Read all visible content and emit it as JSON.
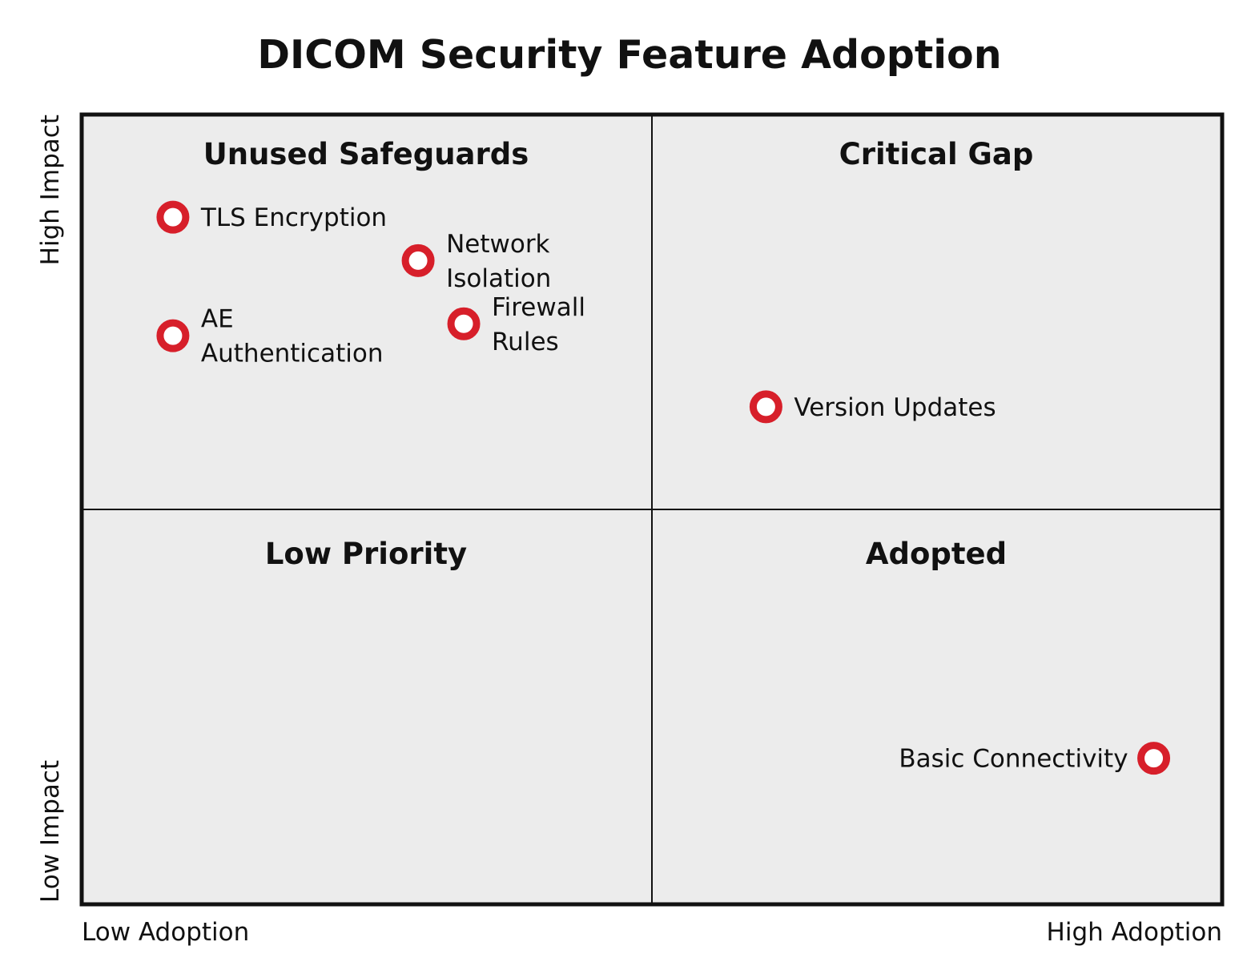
{
  "chart_data": {
    "type": "scatter",
    "title": "DICOM Security Feature Adoption",
    "x_axis": {
      "low_label": "Low Adoption",
      "high_label": "High Adoption",
      "range": [
        0,
        1
      ]
    },
    "y_axis": {
      "low_label": "Low Impact",
      "high_label": "High Impact",
      "range": [
        0,
        1
      ]
    },
    "grid": false,
    "quadrants": {
      "top_left": "Unused Safeguards",
      "top_right": "Critical Gap",
      "bottom_left": "Low Priority",
      "bottom_right": "Adopted"
    },
    "points": [
      {
        "label": [
          "TLS Encryption"
        ],
        "x": 0.08,
        "y": 0.87,
        "label_side": "right"
      },
      {
        "label": [
          "Network",
          "Isolation"
        ],
        "x": 0.295,
        "y": 0.815,
        "label_side": "right"
      },
      {
        "label": [
          "AE",
          "Authentication"
        ],
        "x": 0.08,
        "y": 0.72,
        "label_side": "right"
      },
      {
        "label": [
          "Firewall",
          "Rules"
        ],
        "x": 0.335,
        "y": 0.735,
        "label_side": "right"
      },
      {
        "label": [
          "Version Updates"
        ],
        "x": 0.6,
        "y": 0.63,
        "label_side": "right"
      },
      {
        "label": [
          "Basic Connectivity"
        ],
        "x": 0.94,
        "y": 0.185,
        "label_side": "left"
      }
    ],
    "colors": {
      "marker": "#d71f2a",
      "marker_fill": "#ffffff",
      "plot_background": "#ececec",
      "frame": "#111111"
    }
  }
}
